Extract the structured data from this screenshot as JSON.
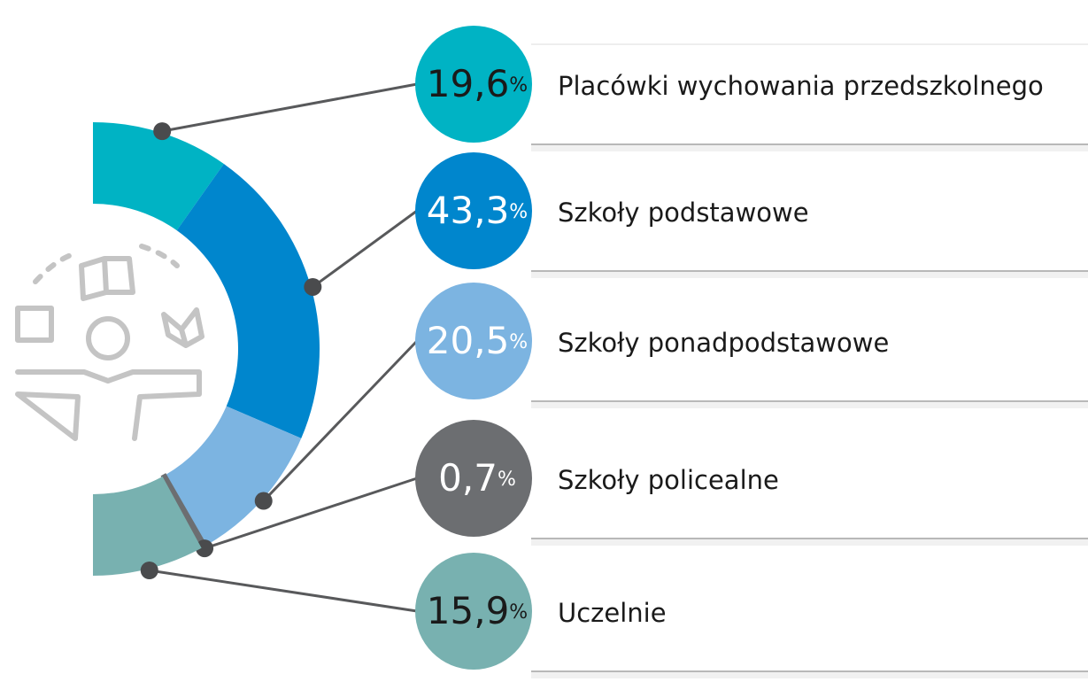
{
  "chart_data": {
    "type": "half-donut",
    "categories": [
      "Placówki wychowania przedszkolnego",
      "Szkoły podstawowe",
      "Szkoły ponadpodstawowe",
      "Szkoły policealne",
      "Uczelnie"
    ],
    "values": [
      19.6,
      43.3,
      20.5,
      0.7,
      15.9
    ],
    "value_labels": [
      "19,6",
      "43,3",
      "20,5",
      "0,7",
      "15,9"
    ],
    "unit": "%",
    "colors": [
      "#00b3c4",
      "#0086cd",
      "#7cb4e1",
      "#6c6e71",
      "#78b1b0"
    ],
    "label_colors": [
      "#1a1a1a",
      "#ffffff",
      "#ffffff",
      "#ffffff",
      "#1a1a1a"
    ]
  }
}
